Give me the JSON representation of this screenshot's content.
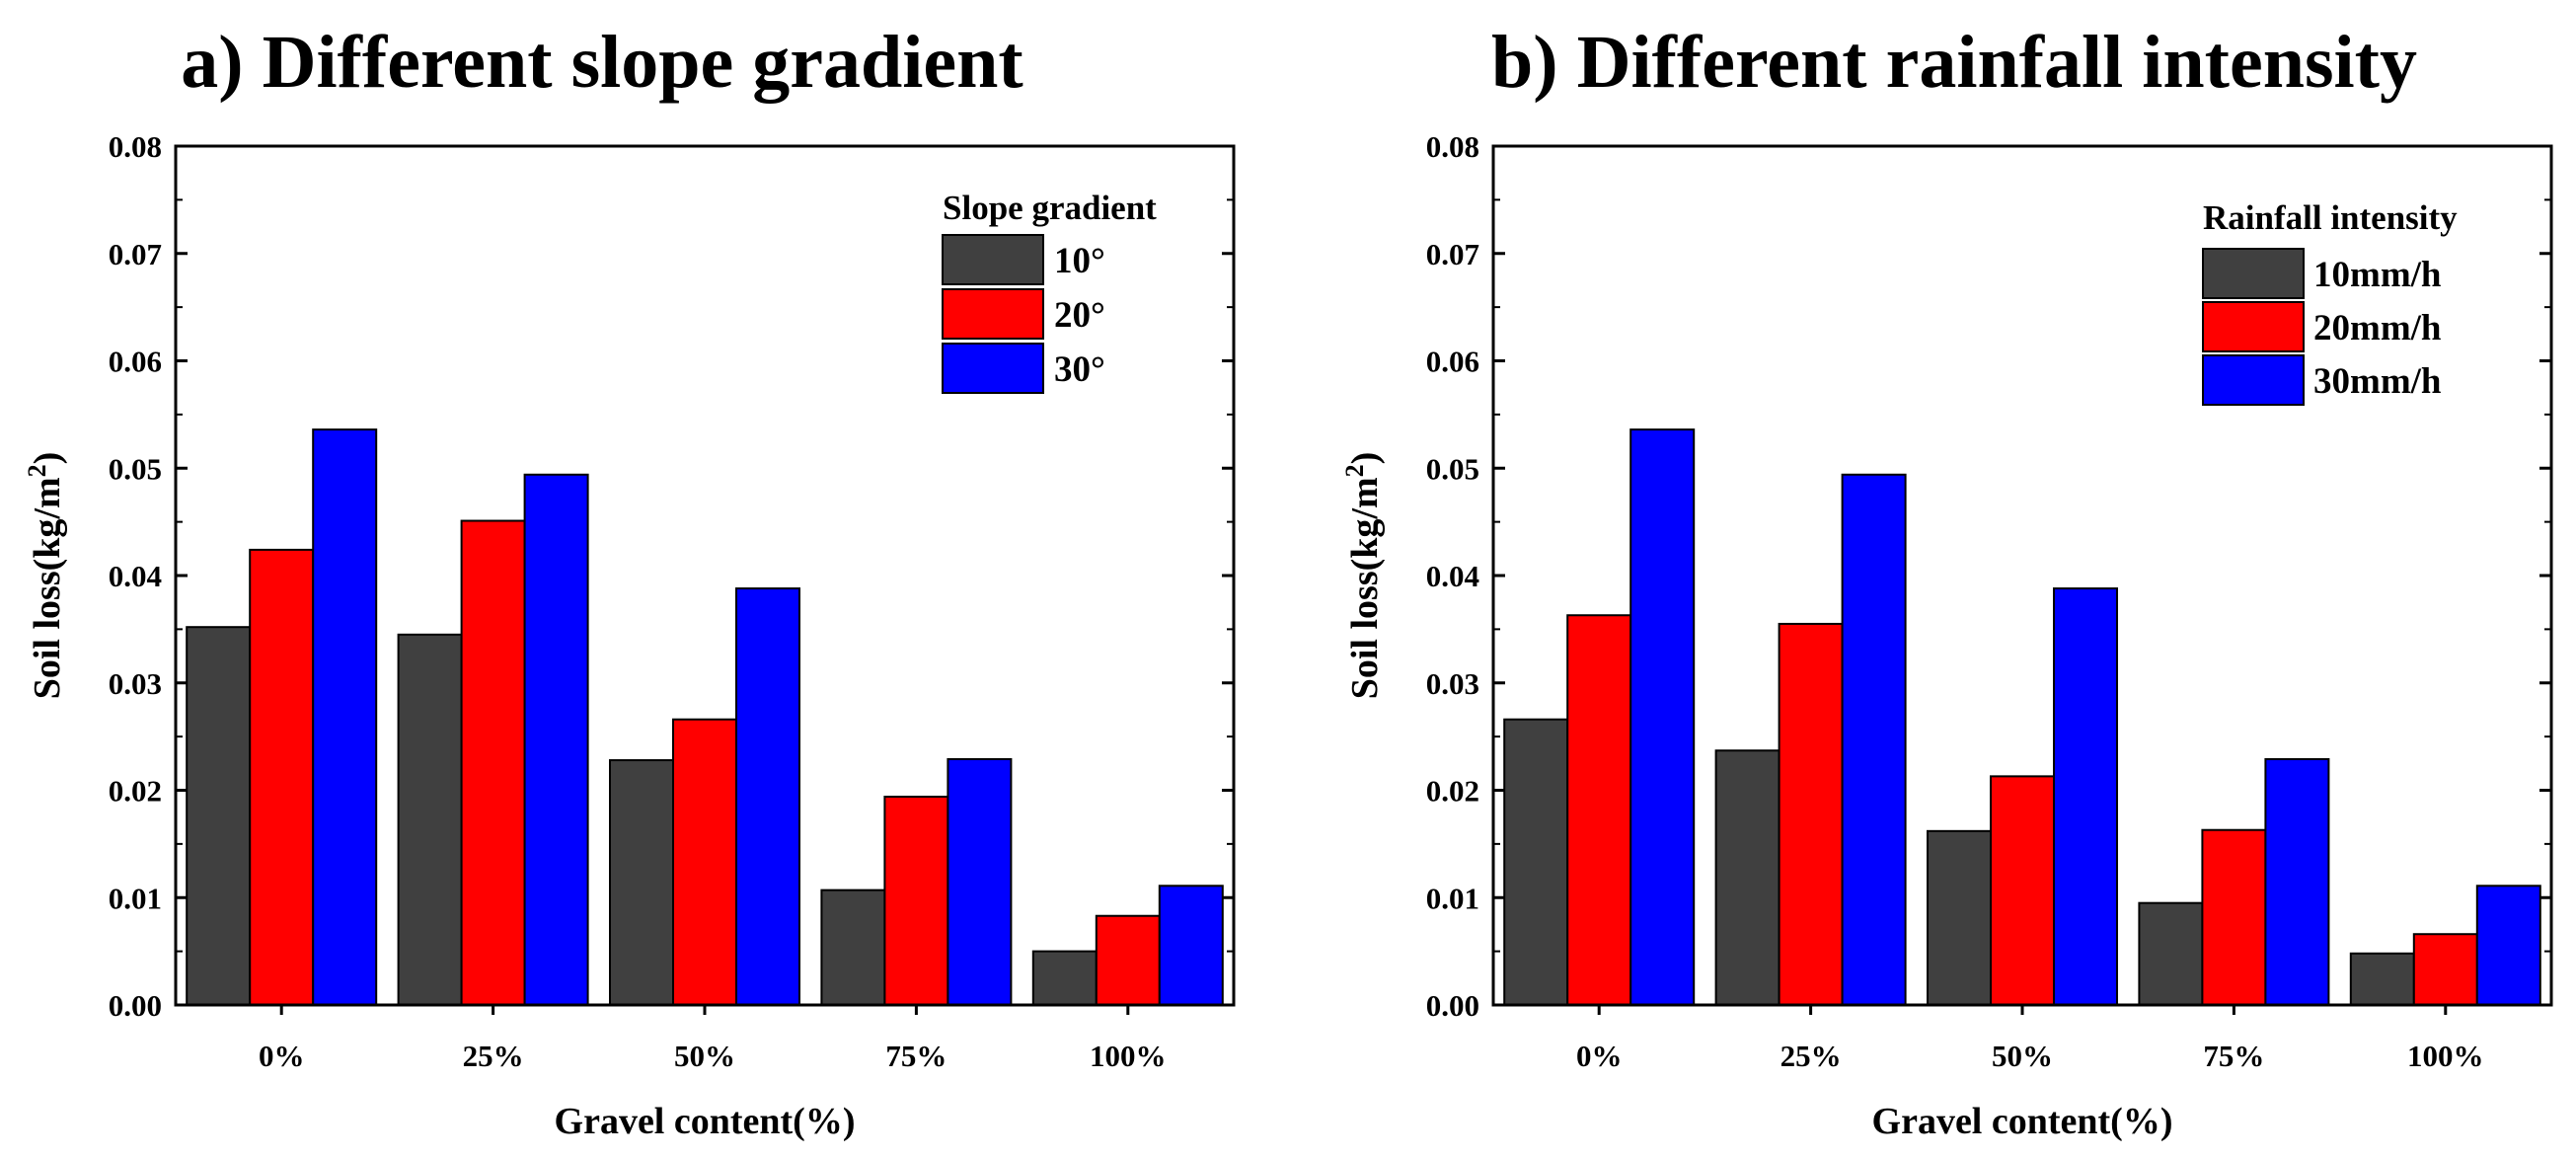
{
  "chart_data": [
    {
      "type": "bar",
      "title": "a) Different slope gradient",
      "xlabel": "Gravel content(%)",
      "ylabel_main": "Soil loss(kg/m",
      "ylabel_sup": "2",
      "ylabel_end": ")",
      "ylim": [
        0,
        0.08
      ],
      "yticks": [
        "0.00",
        "0.01",
        "0.02",
        "0.03",
        "0.04",
        "0.05",
        "0.06",
        "0.07",
        "0.08"
      ],
      "categories": [
        "0%",
        "25%",
        "50%",
        "75%",
        "100%"
      ],
      "legend_title": "Slope gradient",
      "legend_position": "top-right",
      "series": [
        {
          "name": "10°",
          "color": "#404040",
          "values": [
            0.0352,
            0.0345,
            0.0228,
            0.0107,
            0.005
          ]
        },
        {
          "name": "20°",
          "color": "#ff0000",
          "values": [
            0.0424,
            0.0451,
            0.0266,
            0.0194,
            0.0083
          ]
        },
        {
          "name": "30°",
          "color": "#0000ff",
          "values": [
            0.0536,
            0.0494,
            0.0388,
            0.0229,
            0.0111
          ]
        }
      ]
    },
    {
      "type": "bar",
      "title": "b) Different rainfall intensity",
      "xlabel": "Gravel content(%)",
      "ylabel_main": "Soil loss(kg/m",
      "ylabel_sup": "2",
      "ylabel_end": ")",
      "ylim": [
        0,
        0.08
      ],
      "yticks": [
        "0.00",
        "0.01",
        "0.02",
        "0.03",
        "0.04",
        "0.05",
        "0.06",
        "0.07",
        "0.08"
      ],
      "categories": [
        "0%",
        "25%",
        "50%",
        "75%",
        "100%"
      ],
      "legend_title": "Rainfall intensity",
      "legend_position": "top-right",
      "series": [
        {
          "name": "10mm/h",
          "color": "#404040",
          "values": [
            0.0266,
            0.0237,
            0.0162,
            0.0095,
            0.0048
          ]
        },
        {
          "name": "20mm/h",
          "color": "#ff0000",
          "values": [
            0.0363,
            0.0355,
            0.0213,
            0.0163,
            0.0066
          ]
        },
        {
          "name": "30mm/h",
          "color": "#0000ff",
          "values": [
            0.0536,
            0.0494,
            0.0388,
            0.0229,
            0.0111
          ]
        }
      ]
    }
  ]
}
